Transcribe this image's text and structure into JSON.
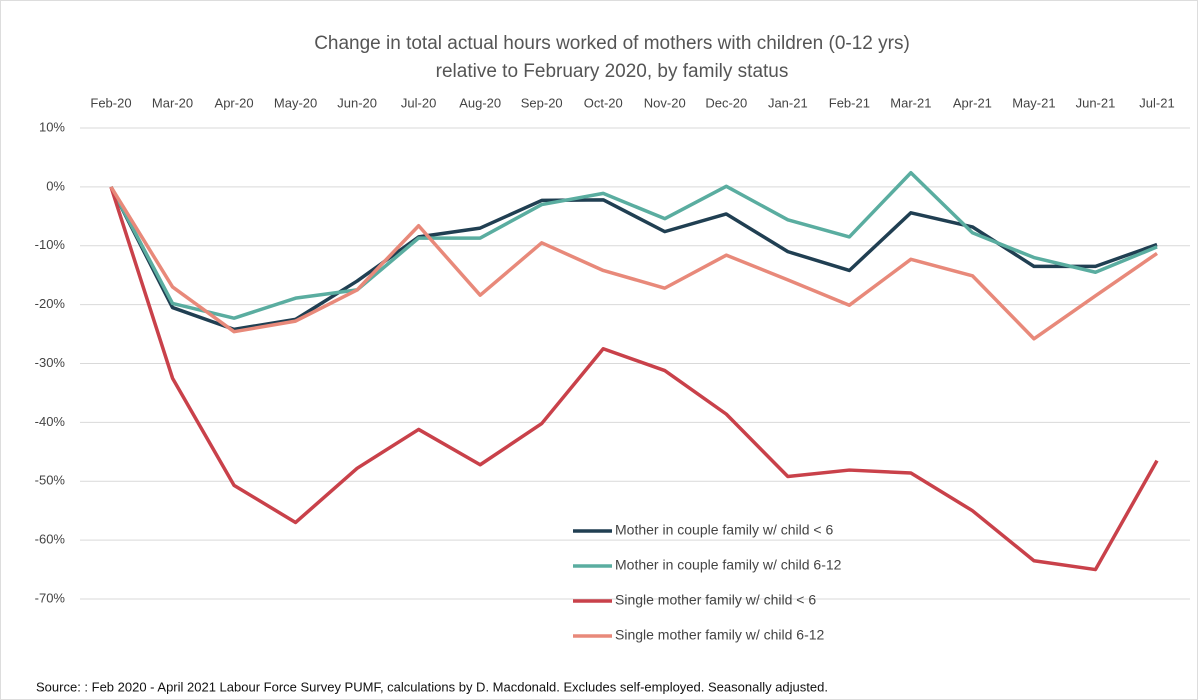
{
  "chart_data": {
    "type": "line",
    "title": [
      "Change in total actual hours worked of mothers with children (0-12 yrs)",
      "relative to February 2020, by family status"
    ],
    "categories": [
      "Feb-20",
      "Mar-20",
      "Apr-20",
      "May-20",
      "Jun-20",
      "Jul-20",
      "Aug-20",
      "Sep-20",
      "Oct-20",
      "Nov-20",
      "Dec-20",
      "Jan-21",
      "Feb-21",
      "Mar-21",
      "Apr-21",
      "May-21",
      "Jun-21",
      "Jul-21"
    ],
    "series": [
      {
        "name": "Mother in couple family w/ child < 6",
        "color": "#203f52",
        "values": [
          0,
          -20.5,
          -24.2,
          -22.5,
          -16,
          -8.5,
          -7,
          -2.3,
          -2.2,
          -7.6,
          -4.6,
          -11,
          -14.2,
          -4.4,
          -6.8,
          -13.5,
          -13.5,
          -9.8
        ]
      },
      {
        "name": "Mother in couple family w/ child 6-12",
        "color": "#5aada0",
        "values": [
          0,
          -19.8,
          -22.3,
          -18.9,
          -17.5,
          -8.7,
          -8.7,
          -3,
          -1.1,
          -5.4,
          0.1,
          -5.6,
          -8.5,
          2.4,
          -7.8,
          -12,
          -14.5,
          -10.2
        ]
      },
      {
        "name": "Single mother family w/ child < 6",
        "color": "#c9414a",
        "values": [
          0,
          -32.5,
          -50.7,
          -57,
          -47.8,
          -41.2,
          -47.2,
          -40.2,
          -27.5,
          -31.2,
          -38.6,
          -49.2,
          -48.1,
          -48.6,
          -55,
          -63.5,
          -65,
          -46.5
        ]
      },
      {
        "name": "Single mother family w/ child 6-12",
        "color": "#e8897a",
        "values": [
          0,
          -17,
          -24.6,
          -22.8,
          -17.5,
          -6.6,
          -18.4,
          -9.5,
          -14.2,
          -17.2,
          -11.6,
          -15.8,
          -20.1,
          -12.3,
          -15.1,
          -25.8,
          -18.5,
          -11.3
        ]
      }
    ],
    "ylim": [
      -70,
      10
    ],
    "yticks": [
      {
        "value": 10,
        "label": "10%"
      },
      {
        "value": 0,
        "label": "0%"
      },
      {
        "value": -10,
        "label": "-10%"
      },
      {
        "value": -20,
        "label": "-20%"
      },
      {
        "value": -30,
        "label": "-30%"
      },
      {
        "value": -40,
        "label": "-40%"
      },
      {
        "value": -50,
        "label": "-50%"
      },
      {
        "value": -60,
        "label": "-60%"
      },
      {
        "value": -70,
        "label": "-70%"
      }
    ],
    "grid": true,
    "source": "Source: : Feb 2020  - April 2021  Labour Force Survey PUMF, calculations by D. Macdonald. Excludes self-employed. Seasonally adjusted."
  }
}
